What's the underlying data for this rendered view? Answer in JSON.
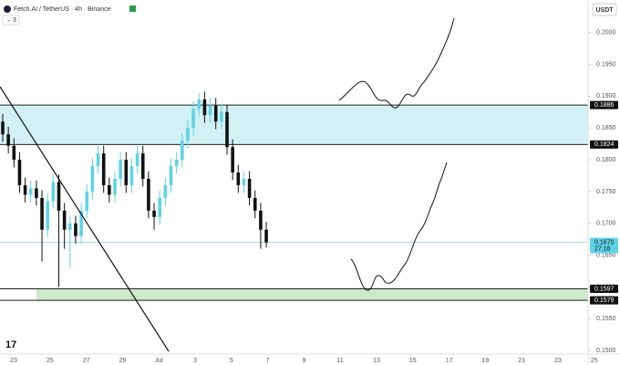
{
  "chart_data": {
    "type": "candlestick",
    "title": "Fetch.AI / TetherUS · 4h · Binance",
    "indicator_count": "3",
    "currency": "USDT",
    "x_labels": [
      "23",
      "25",
      "27",
      "29",
      "Jul",
      "3",
      "5",
      "7",
      "9",
      "11",
      "13",
      "15",
      "17",
      "19",
      "21",
      "23",
      "25"
    ],
    "open": [
      0.186,
      0.184,
      0.1822,
      0.18,
      0.176,
      0.1745,
      0.1755,
      0.174,
      0.169,
      0.1735,
      0.1765,
      0.172,
      0.169,
      0.17,
      0.168,
      0.172,
      0.175,
      0.179,
      0.181,
      0.176,
      0.1745,
      0.177,
      0.18,
      0.176,
      0.179,
      0.181,
      0.177,
      0.172,
      0.171,
      0.174,
      0.176,
      0.179,
      0.18,
      0.183,
      0.185,
      0.188,
      0.1895,
      0.187,
      0.1885,
      0.186,
      0.1875,
      0.182,
      0.178,
      0.176,
      0.177,
      0.174,
      0.172,
      0.169
    ],
    "high": [
      0.1872,
      0.1852,
      0.1834,
      0.1812,
      0.1772,
      0.1767,
      0.1767,
      0.1752,
      0.1747,
      0.1777,
      0.1777,
      0.1732,
      0.1712,
      0.1712,
      0.1732,
      0.1762,
      0.1802,
      0.1822,
      0.1822,
      0.1772,
      0.1782,
      0.1812,
      0.1812,
      0.1802,
      0.1822,
      0.1822,
      0.1782,
      0.1732,
      0.1752,
      0.1772,
      0.1802,
      0.1812,
      0.1842,
      0.1862,
      0.1892,
      0.1905,
      0.1907,
      0.1897,
      0.1897,
      0.1887,
      0.1887,
      0.1832,
      0.1792,
      0.1782,
      0.1782,
      0.1752,
      0.1732,
      0.1702
    ],
    "low": [
      0.1828,
      0.181,
      0.1788,
      0.1748,
      0.1733,
      0.1733,
      0.1728,
      0.164,
      0.1678,
      0.1723,
      0.16,
      0.166,
      0.163,
      0.1668,
      0.1668,
      0.1708,
      0.1738,
      0.1778,
      0.1748,
      0.1733,
      0.1733,
      0.1758,
      0.1748,
      0.1748,
      0.1778,
      0.1758,
      0.1708,
      0.169,
      0.1698,
      0.1728,
      0.1748,
      0.1778,
      0.1788,
      0.1818,
      0.1838,
      0.1868,
      0.1858,
      0.1858,
      0.1848,
      0.1848,
      0.1808,
      0.1768,
      0.1748,
      0.1748,
      0.1728,
      0.1708,
      0.166,
      0.1662
    ],
    "close": [
      0.184,
      0.1822,
      0.18,
      0.176,
      0.1745,
      0.1755,
      0.174,
      0.169,
      0.1735,
      0.1765,
      0.172,
      0.169,
      0.17,
      0.168,
      0.172,
      0.175,
      0.179,
      0.181,
      0.176,
      0.1745,
      0.177,
      0.18,
      0.176,
      0.179,
      0.181,
      0.177,
      0.172,
      0.171,
      0.174,
      0.176,
      0.179,
      0.18,
      0.183,
      0.185,
      0.188,
      0.1895,
      0.187,
      0.1885,
      0.186,
      0.1875,
      0.182,
      0.178,
      0.176,
      0.177,
      0.174,
      0.172,
      0.169,
      0.167
    ],
    "up_color": "#5fd3e6",
    "down_color": "#111111",
    "ylim": [
      0.14945,
      0.20512
    ],
    "yticks": [
      {
        "value": 0.2,
        "label": "0.2000"
      },
      {
        "value": 0.195,
        "label": "0.1950"
      },
      {
        "value": 0.19,
        "label": "0.1900"
      },
      {
        "value": 0.185,
        "label": "0.1850"
      },
      {
        "value": 0.18,
        "label": "0.1800"
      },
      {
        "value": 0.175,
        "label": "0.1750"
      },
      {
        "value": 0.17,
        "label": "0.1700"
      },
      {
        "value": 0.165,
        "label": "0.1650"
      },
      {
        "value": 0.16,
        "label": "0.1600"
      },
      {
        "value": 0.155,
        "label": "0.1550"
      },
      {
        "value": 0.15,
        "label": "0.1500"
      }
    ],
    "zones": [
      {
        "top": 0.1886,
        "bottom": 0.1824,
        "color": "#d2f1f5"
      },
      {
        "top": 0.1597,
        "bottom": 0.1579,
        "color": "#cde8cc"
      }
    ],
    "last_price": {
      "value": 0.167,
      "label": "0.1670"
    },
    "countdown": "27:16",
    "last_price_color": "#5fd3e6"
  }
}
